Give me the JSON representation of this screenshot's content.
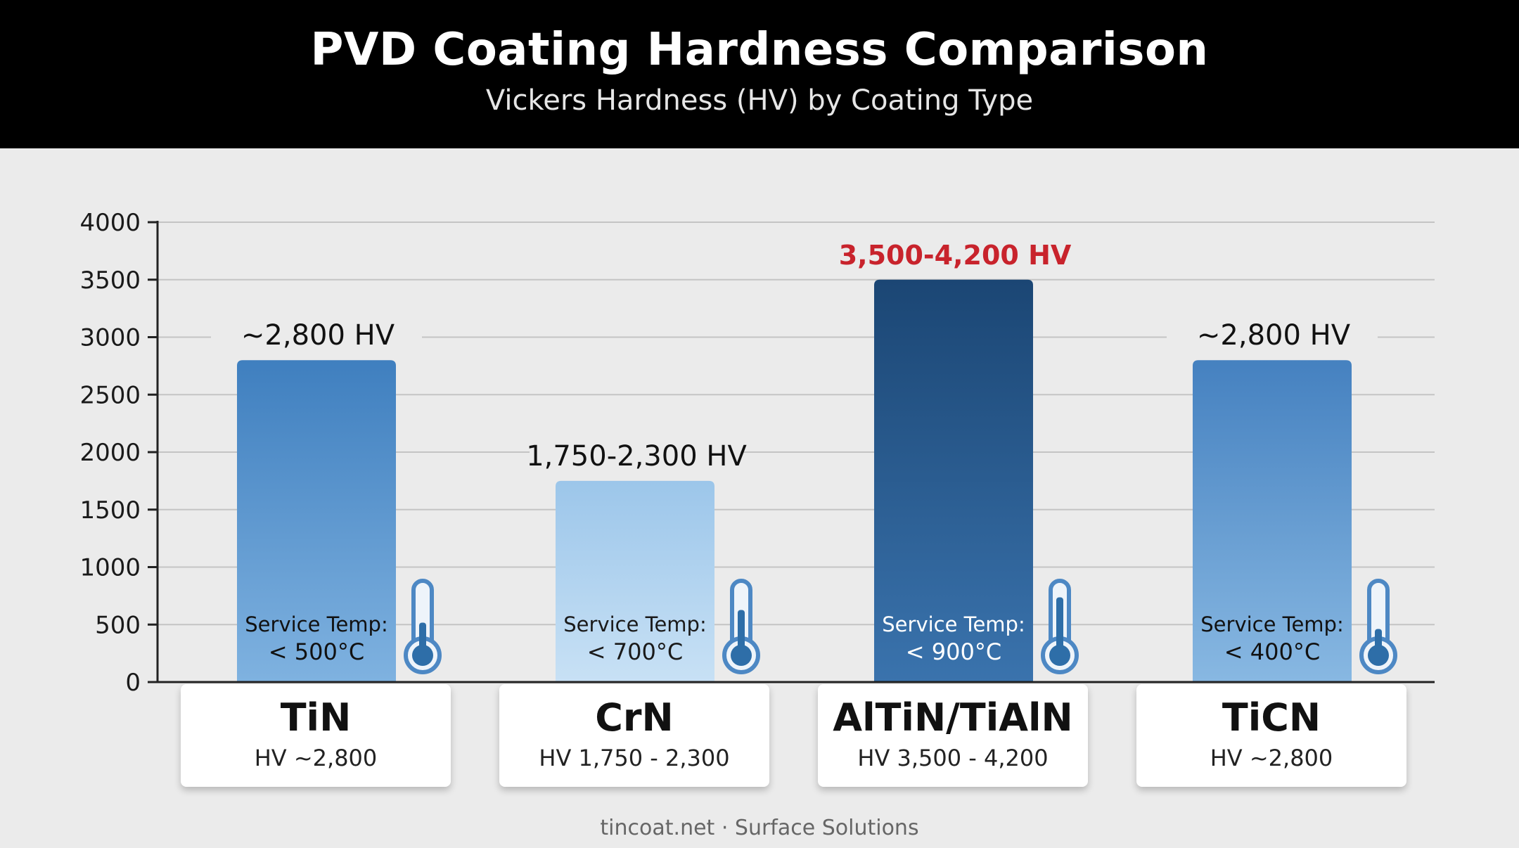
{
  "header": {
    "title": "PVD Coating Hardness Comparison",
    "subtitle": "Vickers Hardness (HV) by Coating Type"
  },
  "footer": {
    "text": "tincoat.net · Surface Solutions"
  },
  "colors": {
    "header_bg": "#000000",
    "highlight_label": "#c8232c",
    "tin_bar": "#3f7fbf",
    "crn_bar": "#a6cdeb",
    "altin_bar": "#1c4a78",
    "ticn_bar": "#4a86c4"
  },
  "chart_data": {
    "type": "bar",
    "ylim": [
      0,
      4000
    ],
    "yticks": [
      0,
      500,
      1000,
      1500,
      2000,
      2500,
      3000,
      3500,
      4000
    ],
    "grid": true,
    "categories": [
      "TiN",
      "CrN",
      "AlTiN/TiAlN",
      "TiCN"
    ],
    "values": [
      2800,
      1750,
      3500,
      2800
    ],
    "bar_labels": [
      "~2,800 HV",
      "1,750-2,300 HV",
      "3,500-4,200 HV",
      "~2,800 HV"
    ],
    "category_sublabels": [
      "HV ~2,800",
      "HV 1,750 - 2,300",
      "HV 3,500 - 4,200",
      "HV ~2,800"
    ],
    "service_temp_label": "Service Temp:",
    "service_temps": [
      "< 500°C",
      "< 700°C",
      "< 900°C",
      "< 400°C"
    ],
    "thermometer_levels": [
      0.45,
      0.65,
      0.85,
      0.35
    ],
    "highlight_index": 2
  }
}
